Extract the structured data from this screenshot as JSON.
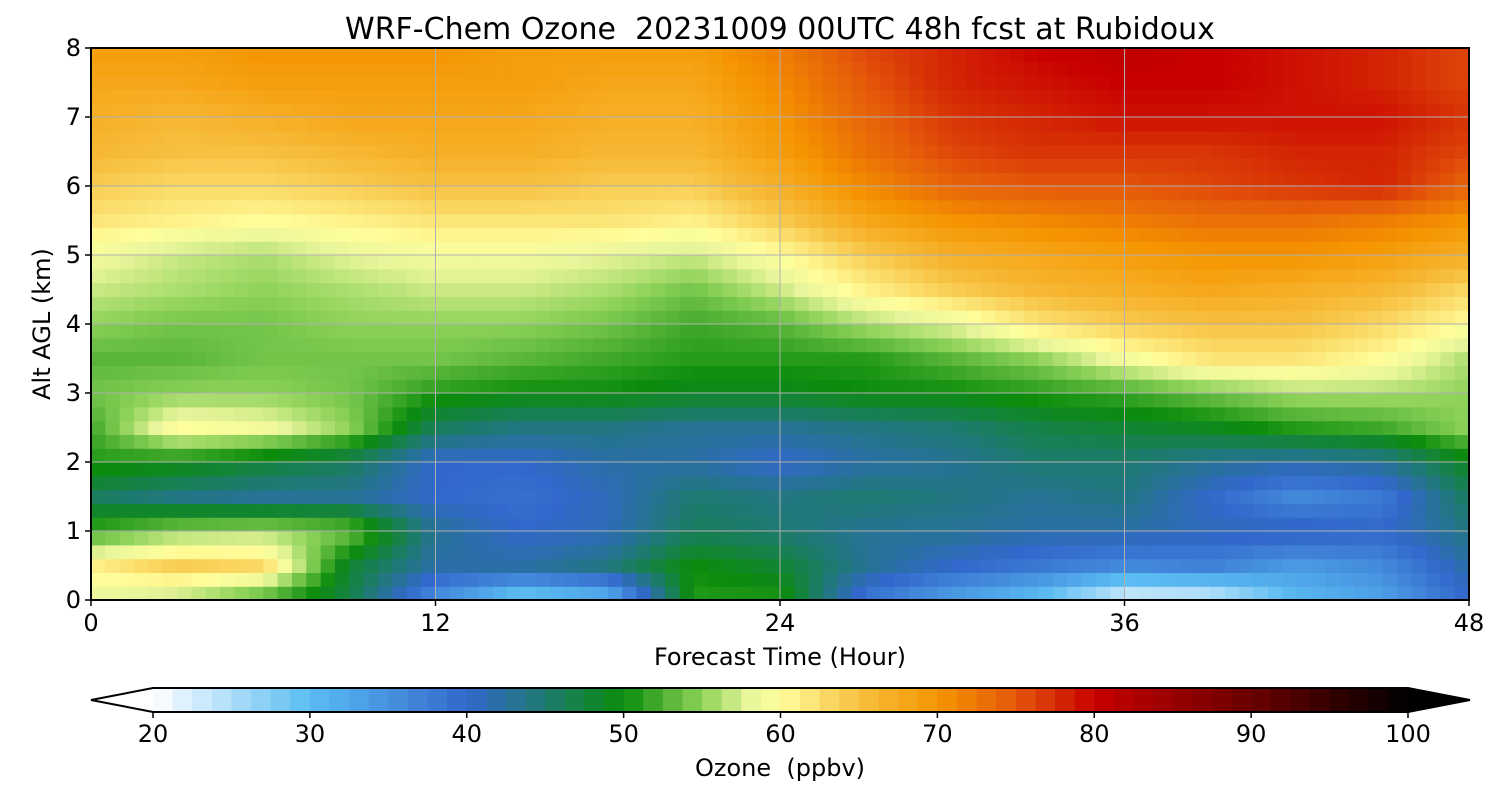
{
  "chart_data": {
    "type": "heatmap",
    "title": "WRF-Chem Ozone  20231009 00UTC 48h fcst at Rubidoux",
    "xlabel": "Forecast Time (Hour)",
    "ylabel": "Alt AGL (km)",
    "xlim": [
      0,
      48
    ],
    "ylim": [
      0,
      8
    ],
    "xticks": [
      "0",
      "12",
      "24",
      "36",
      "48"
    ],
    "yticks": [
      "0",
      "1",
      "2",
      "3",
      "4",
      "5",
      "6",
      "7",
      "8"
    ],
    "grid": true,
    "x_hours": [
      0,
      3,
      6,
      9,
      12,
      15,
      18,
      21,
      24,
      27,
      30,
      33,
      36,
      39,
      42,
      45,
      48
    ],
    "y_km": [
      0,
      0.5,
      1,
      1.5,
      2,
      2.5,
      3,
      3.5,
      4,
      4.5,
      5,
      5.5,
      6,
      6.5,
      7,
      7.5,
      8
    ],
    "z_ppbv": [
      [
        58,
        56,
        52,
        47,
        35,
        27,
        30,
        51,
        51,
        38,
        33,
        29,
        21,
        22,
        30,
        33,
        40
      ],
      [
        61,
        64,
        63,
        48,
        42,
        42,
        44,
        50,
        48,
        43,
        40,
        38,
        36,
        37,
        34,
        36,
        42
      ],
      [
        52,
        55,
        56,
        54,
        43,
        40,
        41,
        46,
        45,
        43,
        43,
        42,
        42,
        41,
        41,
        40,
        44
      ],
      [
        46,
        44,
        43,
        43,
        40,
        39,
        41,
        45,
        44,
        45,
        44,
        43,
        44,
        40,
        36,
        38,
        46
      ],
      [
        51,
        50,
        48,
        46,
        40,
        40,
        42,
        42,
        40,
        42,
        43,
        45,
        45,
        43,
        42,
        43,
        49
      ],
      [
        52,
        60,
        59,
        55,
        46,
        44,
        44,
        43,
        43,
        44,
        45,
        47,
        48,
        49,
        51,
        52,
        55
      ],
      [
        54,
        55,
        55,
        54,
        51,
        50,
        50,
        49,
        49,
        50,
        50,
        51,
        52,
        54,
        56,
        56,
        55
      ],
      [
        53,
        53,
        54,
        54,
        54,
        53,
        52,
        51,
        51,
        51,
        53,
        55,
        59,
        62,
        62,
        60,
        56
      ],
      [
        55,
        54,
        54,
        55,
        55,
        55,
        54,
        52,
        53,
        56,
        58,
        62,
        64,
        65,
        65,
        63,
        60
      ],
      [
        57,
        56,
        55,
        56,
        57,
        57,
        56,
        54,
        57,
        61,
        64,
        66,
        67,
        68,
        67,
        66,
        63
      ],
      [
        59,
        57,
        56,
        58,
        59,
        59,
        58,
        57,
        60,
        64,
        67,
        68,
        69,
        70,
        70,
        69,
        67
      ],
      [
        62,
        61,
        60,
        61,
        62,
        62,
        62,
        61,
        64,
        68,
        70,
        71,
        72,
        73,
        73,
        72,
        70
      ],
      [
        64,
        63,
        63,
        64,
        65,
        65,
        64,
        64,
        67,
        71,
        74,
        75,
        75,
        76,
        77,
        78,
        74
      ],
      [
        66,
        65,
        65,
        66,
        67,
        67,
        66,
        66,
        69,
        73,
        76,
        77,
        77,
        77,
        78,
        78,
        76
      ],
      [
        67,
        66,
        67,
        68,
        68,
        68,
        67,
        67,
        70,
        74,
        77,
        78,
        79,
        79,
        79,
        79,
        77
      ],
      [
        68,
        68,
        69,
        69,
        69,
        69,
        68,
        68,
        71,
        75,
        78,
        79,
        80,
        80,
        79,
        78,
        76
      ],
      [
        69,
        69,
        70,
        70,
        70,
        69,
        69,
        69,
        72,
        76,
        78,
        80,
        81,
        80,
        79,
        78,
        76
      ]
    ],
    "colorbar": {
      "label": "Ozone  (ppbv)",
      "ticks": [
        "20",
        "30",
        "40",
        "50",
        "60",
        "70",
        "80",
        "90",
        "100"
      ],
      "range": [
        20,
        100
      ],
      "extend": "both",
      "colors": {
        "20": "#ffffff",
        "30": "#5bbcf2",
        "40": "#3268cc",
        "45": "#1e7a70",
        "50": "#0b8c0b",
        "55": "#8ed25a",
        "58": "#e8f59a",
        "60": "#fffe9c",
        "65": "#f7c040",
        "70": "#f59500",
        "75": "#e4580a",
        "80": "#c80000",
        "90": "#6a0000",
        "100": "#000000"
      }
    }
  }
}
